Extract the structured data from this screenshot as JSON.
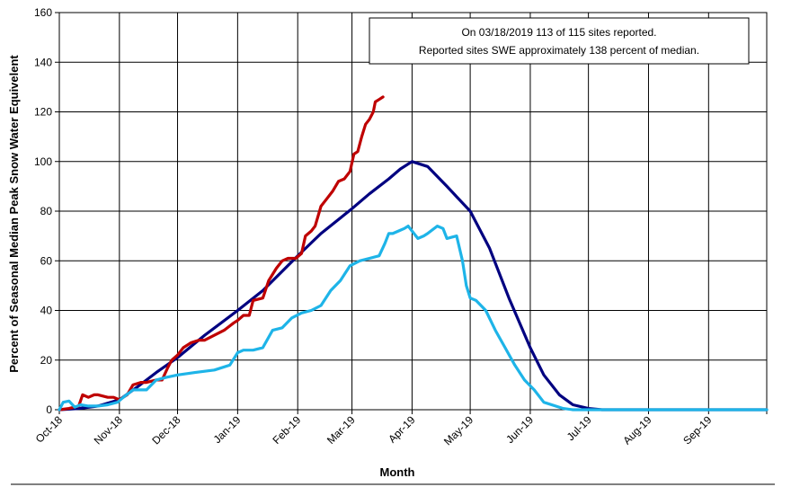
{
  "chart_data": {
    "type": "line",
    "title": "",
    "xlabel": "Month",
    "ylabel": "Percent of Seasonal Median Peak Snow Water Equivelent",
    "ylim": [
      0,
      160
    ],
    "yticks": [
      0,
      20,
      40,
      60,
      80,
      100,
      120,
      140,
      160
    ],
    "x_unit": "days since Oct 1, 2018",
    "xlim": [
      0,
      365
    ],
    "xtick_positions": [
      0,
      31,
      61,
      92,
      123,
      151,
      182,
      212,
      243,
      273,
      304,
      335,
      365
    ],
    "xtick_labels": [
      "Oct-18",
      "Nov-18",
      "Dec-18",
      "Jan-19",
      "Feb-19",
      "Mar-19",
      "Apr-19",
      "May-19",
      "Jun-19",
      "Jul-19",
      "Aug-19",
      "Sep-19",
      ""
    ],
    "grid": true,
    "legend": "none",
    "annotation": [
      "On 03/18/2019 113 of 115 sites reported.",
      "Reported sites SWE approximately 138 percent of median."
    ],
    "series": [
      {
        "color": "#000080",
        "x": [
          0,
          10,
          20,
          31,
          40,
          50,
          61,
          75,
          92,
          105,
          123,
          135,
          151,
          160,
          170,
          176,
          182,
          190,
          200,
          212,
          222,
          232,
          243,
          250,
          258,
          265,
          273,
          280,
          300,
          335,
          365
        ],
        "y": [
          0,
          0.5,
          1.5,
          4,
          9,
          15,
          21,
          30,
          40,
          48,
          62,
          71,
          81,
          87,
          93,
          97,
          100,
          98,
          90,
          80,
          65,
          45,
          25,
          14,
          6,
          2,
          0.5,
          0,
          0,
          0,
          0
        ]
      },
      {
        "color": "#BF0000",
        "x": [
          0,
          5,
          10,
          12,
          15,
          18,
          20,
          25,
          28,
          31,
          35,
          38,
          42,
          45,
          50,
          53,
          56,
          58,
          61,
          64,
          68,
          72,
          75,
          80,
          85,
          90,
          92,
          95,
          98,
          100,
          105,
          108,
          112,
          115,
          118,
          122,
          125,
          127,
          130,
          132,
          135,
          138,
          141,
          144,
          147,
          150,
          152,
          154,
          156,
          158,
          160,
          162,
          163,
          165,
          167
        ],
        "y": [
          0,
          0.5,
          1.5,
          6,
          5,
          6,
          6,
          5,
          5,
          4,
          6,
          10,
          11,
          11,
          12,
          12,
          17,
          20,
          22,
          25,
          27,
          28,
          28,
          30,
          32,
          35,
          36,
          38,
          38,
          44,
          45,
          52,
          57,
          60,
          61,
          61,
          63,
          70,
          72,
          74,
          82,
          85,
          88,
          92,
          93,
          96,
          103,
          104,
          110,
          115,
          117,
          120,
          124,
          125,
          126
        ]
      },
      {
        "color": "#1EB4E8",
        "x": [
          0,
          2,
          5,
          8,
          11,
          15,
          20,
          25,
          30,
          33,
          38,
          42,
          45,
          50,
          55,
          61,
          70,
          80,
          88,
          92,
          95,
          100,
          105,
          110,
          115,
          120,
          125,
          130,
          135,
          140,
          145,
          150,
          155,
          160,
          165,
          168,
          170,
          172,
          175,
          178,
          180,
          182,
          185,
          188,
          190,
          195,
          198,
          200,
          205,
          208,
          210,
          212,
          215,
          220,
          225,
          230,
          235,
          240,
          245,
          250,
          260,
          265,
          300,
          335,
          365
        ],
        "y": [
          0,
          3,
          3.5,
          1,
          2,
          1.5,
          1.5,
          2,
          3,
          5,
          8,
          8,
          8,
          12,
          13,
          14,
          15,
          16,
          18,
          23,
          24,
          24,
          25,
          32,
          33,
          37,
          39,
          40,
          42,
          48,
          52,
          58,
          60,
          61,
          62,
          67,
          71,
          71,
          72,
          73,
          74,
          72,
          69,
          70,
          71,
          74,
          73,
          69,
          70,
          60,
          50,
          45,
          44,
          40,
          32,
          25,
          18,
          12,
          8,
          3,
          0.5,
          0,
          0,
          0,
          0
        ]
      }
    ]
  }
}
